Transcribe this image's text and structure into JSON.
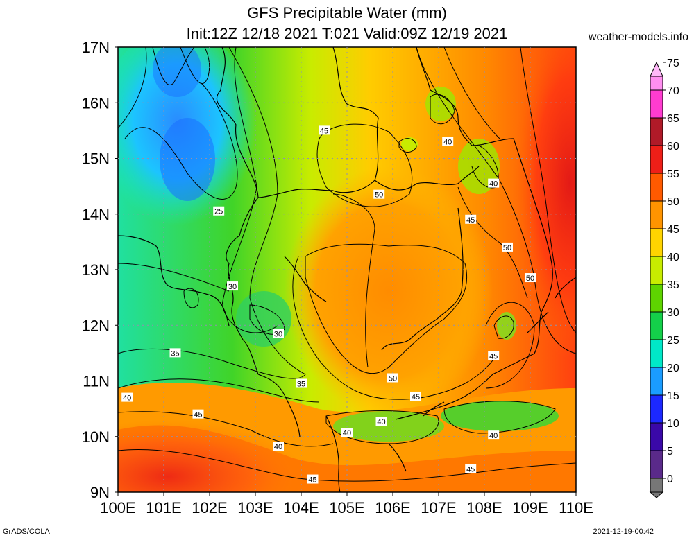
{
  "title": "GFS Precipitable Water (mm)",
  "subtitle": "Init:12Z 12/18 2021 T:021 Valid:09Z 12/19 2021",
  "site": "weather-models.info",
  "footer_left": "GrADS/COLA",
  "footer_right": "2021-12-19-00:42",
  "map": {
    "lon_range": [
      100,
      110
    ],
    "lat_range": [
      9,
      17
    ],
    "lon_ticks": [
      "100E",
      "101E",
      "102E",
      "103E",
      "104E",
      "105E",
      "106E",
      "107E",
      "108E",
      "109E",
      "110E"
    ],
    "lat_ticks": [
      "17N",
      "16N",
      "15N",
      "14N",
      "13N",
      "12N",
      "11N",
      "10N",
      "9N"
    ],
    "contour_labels": [
      {
        "text": "25",
        "lon": 102.2,
        "lat": 14.05
      },
      {
        "text": "30",
        "lon": 102.5,
        "lat": 12.7
      },
      {
        "text": "30",
        "lon": 103.5,
        "lat": 11.85
      },
      {
        "text": "35",
        "lon": 101.25,
        "lat": 11.5
      },
      {
        "text": "35",
        "lon": 104.0,
        "lat": 10.95
      },
      {
        "text": "40",
        "lon": 100.2,
        "lat": 10.7
      },
      {
        "text": "40",
        "lon": 103.5,
        "lat": 9.82
      },
      {
        "text": "40",
        "lon": 105.0,
        "lat": 10.07
      },
      {
        "text": "40",
        "lon": 105.75,
        "lat": 10.27
      },
      {
        "text": "40",
        "lon": 107.2,
        "lat": 15.3
      },
      {
        "text": "40",
        "lon": 108.2,
        "lat": 14.55
      },
      {
        "text": "40",
        "lon": 108.2,
        "lat": 10.02
      },
      {
        "text": "45",
        "lon": 104.5,
        "lat": 15.5
      },
      {
        "text": "45",
        "lon": 101.75,
        "lat": 10.4
      },
      {
        "text": "45",
        "lon": 104.25,
        "lat": 9.23
      },
      {
        "text": "45",
        "lon": 106.5,
        "lat": 10.72
      },
      {
        "text": "45",
        "lon": 107.7,
        "lat": 13.9
      },
      {
        "text": "45",
        "lon": 108.2,
        "lat": 11.45
      },
      {
        "text": "45",
        "lon": 107.7,
        "lat": 9.42
      },
      {
        "text": "50",
        "lon": 105.7,
        "lat": 14.35
      },
      {
        "text": "50",
        "lon": 108.5,
        "lat": 13.4
      },
      {
        "text": "50",
        "lon": 109.0,
        "lat": 12.85
      },
      {
        "text": "50",
        "lon": 106.0,
        "lat": 11.05
      }
    ]
  },
  "colorbar": {
    "labels": [
      "75",
      "70",
      "65",
      "60",
      "55",
      "50",
      "45",
      "40",
      "35",
      "30",
      "25",
      "20",
      "15",
      "10",
      "5",
      "0"
    ],
    "colors": [
      "#ff8ff0",
      "#ff3cd0",
      "#b01a28",
      "#ee1f18",
      "#ff5a00",
      "#ff9400",
      "#ffd400",
      "#c8ec00",
      "#5ed400",
      "#14d04a",
      "#00e8c8",
      "#1a9cff",
      "#1c28ff",
      "#3a08a8",
      "#5a2a8a",
      "#777777"
    ]
  }
}
